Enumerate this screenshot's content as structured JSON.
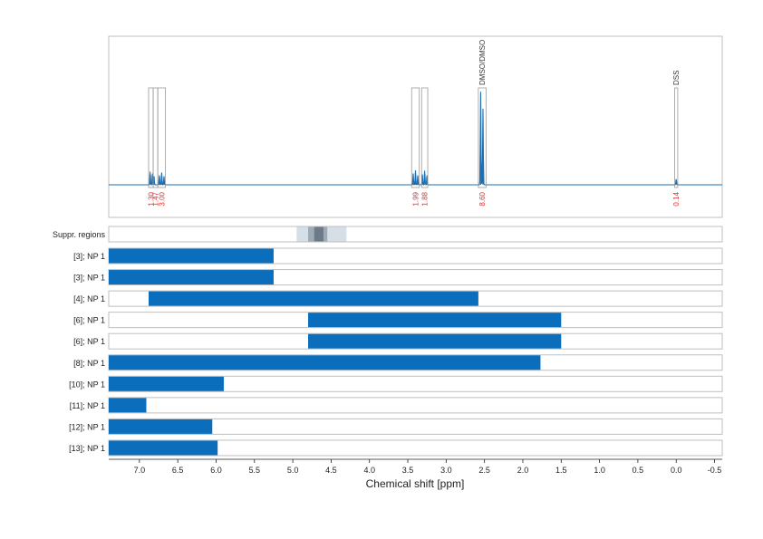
{
  "chart_data": {
    "type": "nmr_spectrum_with_range_bars",
    "xlabel": "Chemical shift [ppm]",
    "x_axis": {
      "reversed": true,
      "xlim": [
        7.4,
        -0.6
      ],
      "ticks": [
        7.0,
        6.5,
        6.0,
        5.5,
        5.0,
        4.5,
        4.0,
        3.5,
        3.0,
        2.5,
        2.0,
        1.5,
        1.0,
        0.5,
        0.0,
        -0.5
      ],
      "tick_labels": [
        "7.0",
        "6.5",
        "6.0",
        "5.5",
        "5.0",
        "4.5",
        "4.0",
        "3.5",
        "3.0",
        "2.5",
        "2.0",
        "1.5",
        "1.0",
        "0.5",
        "0.0",
        "-0.5"
      ],
      "grid": "dotted vertical"
    },
    "spectrum": {
      "color": "#1f6fb0",
      "peaks": [
        {
          "center": 6.86,
          "height": 0.14
        },
        {
          "center": 6.83,
          "height": 0.12
        },
        {
          "center": 6.81,
          "height": 0.09
        },
        {
          "center": 6.74,
          "height": 0.1
        },
        {
          "center": 6.71,
          "height": 0.13
        },
        {
          "center": 6.68,
          "height": 0.09
        },
        {
          "center": 3.43,
          "height": 0.12
        },
        {
          "center": 3.4,
          "height": 0.15
        },
        {
          "center": 3.37,
          "height": 0.1
        },
        {
          "center": 3.31,
          "height": 0.11
        },
        {
          "center": 3.28,
          "height": 0.15
        },
        {
          "center": 3.25,
          "height": 0.1
        },
        {
          "center": 2.55,
          "height": 0.98
        },
        {
          "center": 2.52,
          "height": 0.8
        },
        {
          "center": 0.0,
          "height": 0.06
        }
      ],
      "integral_boxes": [
        {
          "from": 6.88,
          "to": 6.82,
          "label": "1.30"
        },
        {
          "from": 6.82,
          "to": 6.76,
          "label": "1.47"
        },
        {
          "from": 6.76,
          "to": 6.66,
          "label": "3.00"
        },
        {
          "from": 3.45,
          "to": 3.35,
          "label": "1.99"
        },
        {
          "from": 3.32,
          "to": 3.24,
          "label": "1.88"
        },
        {
          "from": 2.58,
          "to": 2.48,
          "label": "8.60",
          "name": "DMSO/DMSO"
        },
        {
          "from": 0.02,
          "to": -0.02,
          "label": "0.14",
          "name": "DSS"
        }
      ],
      "integral_label_color": "#e03030"
    },
    "suppressed_regions": {
      "label": "Suppr. regions",
      "bands": [
        {
          "from": 4.95,
          "to": 4.3,
          "shade": "#d6dee6"
        },
        {
          "from": 4.8,
          "to": 4.55,
          "shade": "#9eabb7"
        },
        {
          "from": 4.72,
          "to": 4.6,
          "shade": "#6d7b88"
        }
      ]
    },
    "range_bars": {
      "color": "#0a6ebd",
      "rows": [
        {
          "label": "[3]; NP 1",
          "from": 7.4,
          "to": 5.25
        },
        {
          "label": "[3]; NP 1",
          "from": 7.4,
          "to": 5.25
        },
        {
          "label": "[4]; NP 1",
          "from": 6.88,
          "to": 2.58
        },
        {
          "label": "[6]; NP 1",
          "from": 4.8,
          "to": 1.5
        },
        {
          "label": "[6]; NP 1",
          "from": 4.8,
          "to": 1.5
        },
        {
          "label": "[8]; NP 1",
          "from": 7.4,
          "to": 1.77
        },
        {
          "label": "[10]; NP 1",
          "from": 7.4,
          "to": 5.9
        },
        {
          "label": "[11]; NP 1",
          "from": 7.4,
          "to": 6.91
        },
        {
          "label": "[12]; NP 1",
          "from": 7.4,
          "to": 6.05
        },
        {
          "label": "[13]; NP 1",
          "from": 7.4,
          "to": 5.98
        }
      ]
    }
  }
}
